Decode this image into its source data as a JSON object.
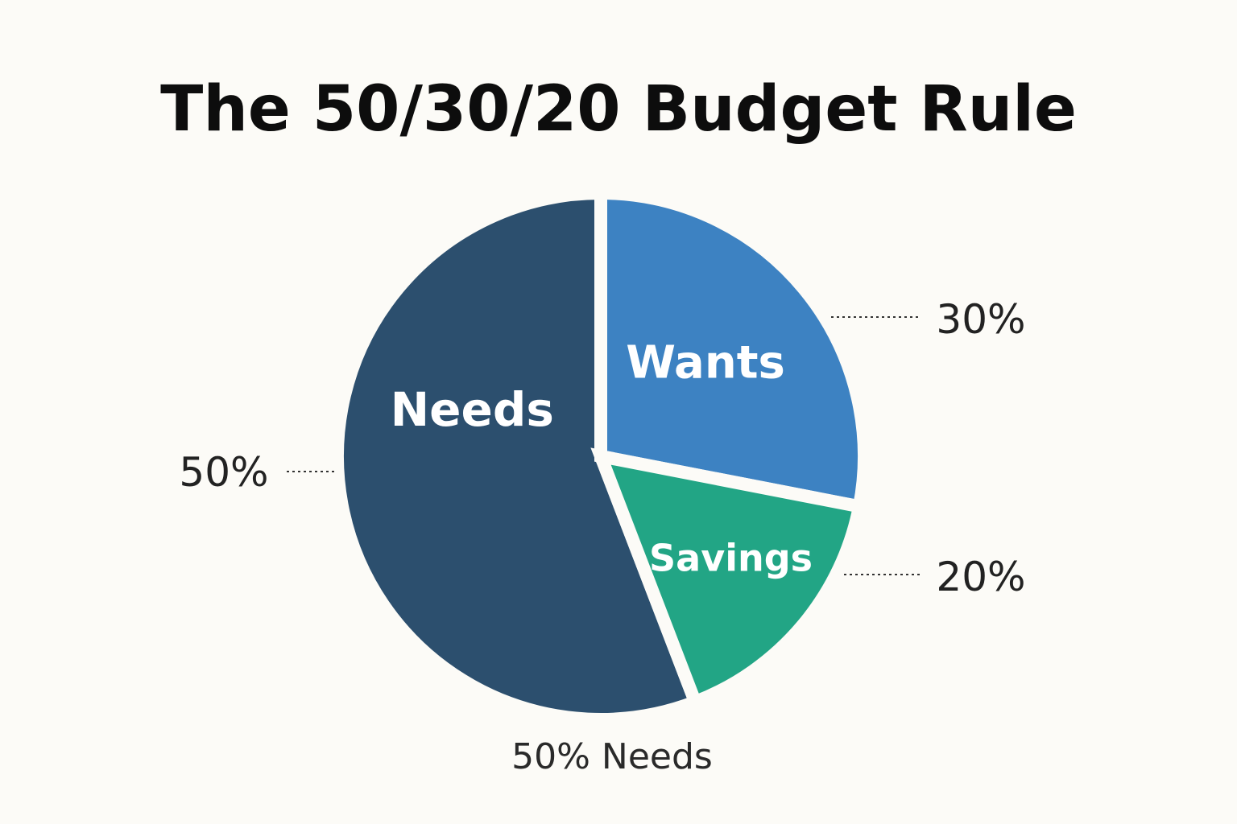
{
  "chart_data": {
    "type": "pie",
    "title": "The 50/30/20 Budget Rule",
    "slices": [
      {
        "label": "Needs",
        "value": 50,
        "percent_label": "50%",
        "color": "#2c4f6e"
      },
      {
        "label": "Wants",
        "value": 30,
        "percent_label": "30%",
        "color": "#3d82c2"
      },
      {
        "label": "Savings",
        "value": 20,
        "percent_label": "20%",
        "color": "#22a585"
      }
    ],
    "caption": "50% Needs",
    "legend": "none"
  }
}
